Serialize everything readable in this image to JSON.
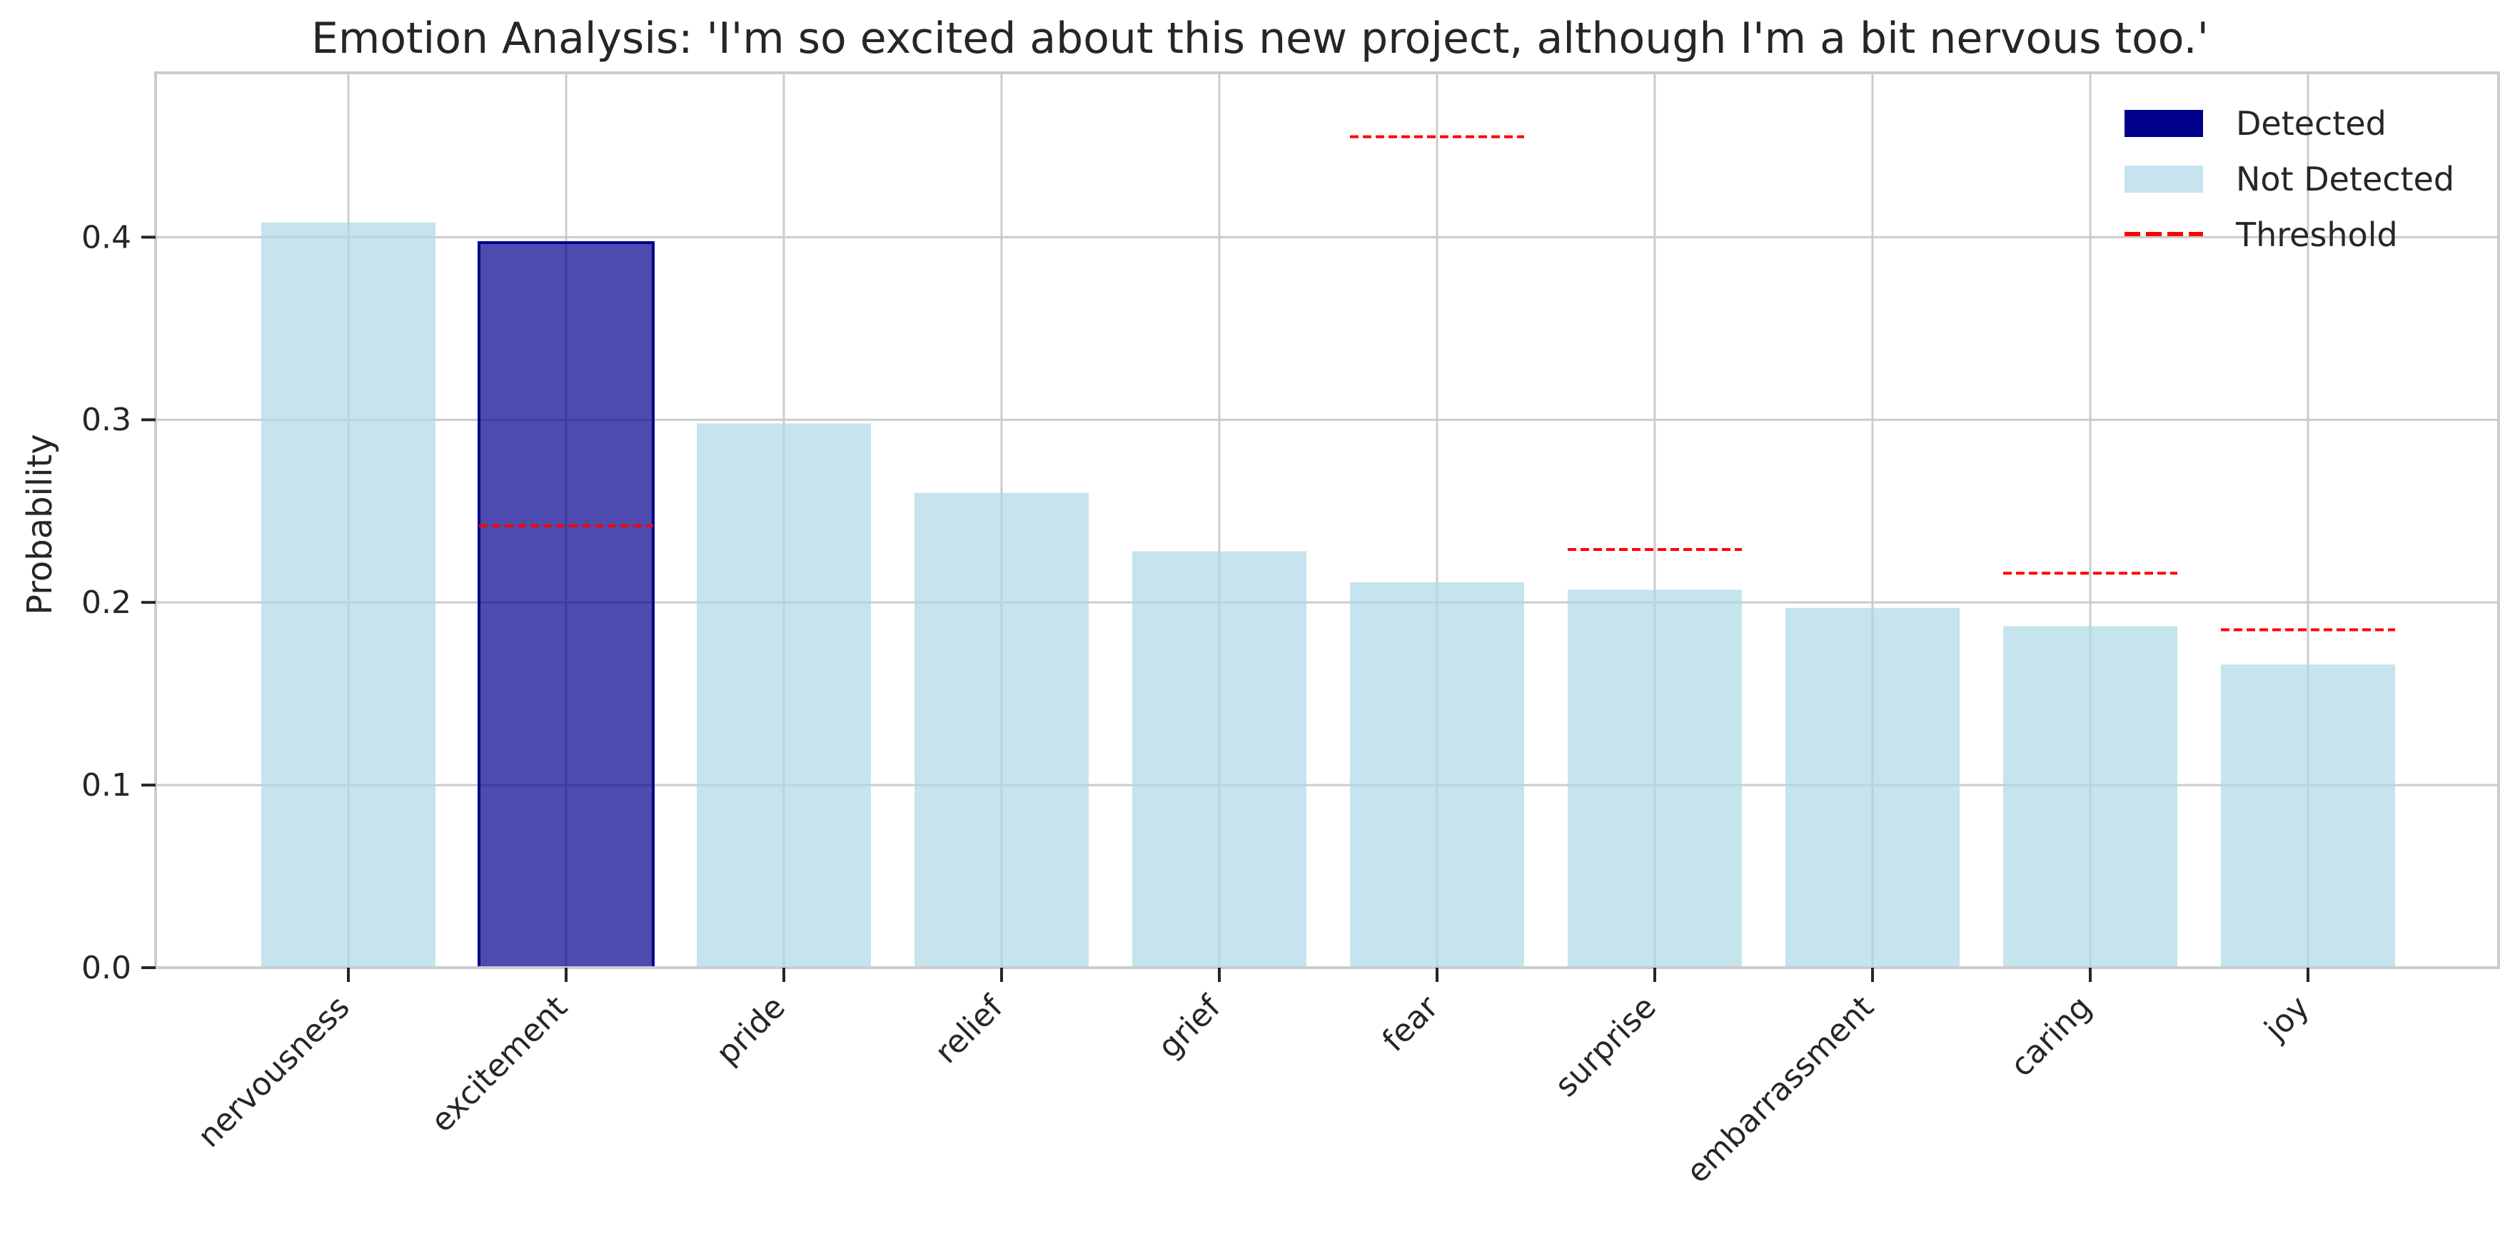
{
  "chart_data": {
    "type": "bar",
    "title": "Emotion Analysis: 'I'm so excited about this new project, although I'm a bit nervous too.'",
    "xlabel": "",
    "ylabel": "Probability",
    "ylim": [
      0,
      0.49
    ],
    "yticks": [
      0.0,
      0.1,
      0.2,
      0.3,
      0.4
    ],
    "ytick_labels": [
      "0.0",
      "0.1",
      "0.2",
      "0.3",
      "0.4"
    ],
    "grid": true,
    "legend_position": "top-right",
    "categories": [
      "nervousness",
      "excitement",
      "pride",
      "relief",
      "grief",
      "fear",
      "surprise",
      "embarrassment",
      "caring",
      "joy"
    ],
    "values": [
      0.408,
      0.397,
      0.298,
      0.26,
      0.228,
      0.211,
      0.207,
      0.197,
      0.187,
      0.166
    ],
    "detected": [
      false,
      true,
      false,
      false,
      false,
      false,
      false,
      false,
      false,
      false
    ],
    "thresholds": [
      {
        "category": "excitement",
        "value": 0.242
      },
      {
        "category": "fear",
        "value": 0.455
      },
      {
        "category": "surprise",
        "value": 0.229
      },
      {
        "category": "caring",
        "value": 0.216
      },
      {
        "category": "joy",
        "value": 0.185
      }
    ],
    "legend": [
      {
        "label": "Detected",
        "kind": "patch",
        "color": "#00008b"
      },
      {
        "label": "Not Detected",
        "kind": "patch",
        "color": "#add8e6"
      },
      {
        "label": "Threshold",
        "kind": "dashed-line",
        "color": "#ff0000"
      }
    ],
    "colors": {
      "detected": "#00008b",
      "not_detected": "#add8e6",
      "threshold": "#ff0000",
      "grid": "#cccccc",
      "axes": "#cccccc",
      "text": "#262626"
    }
  }
}
